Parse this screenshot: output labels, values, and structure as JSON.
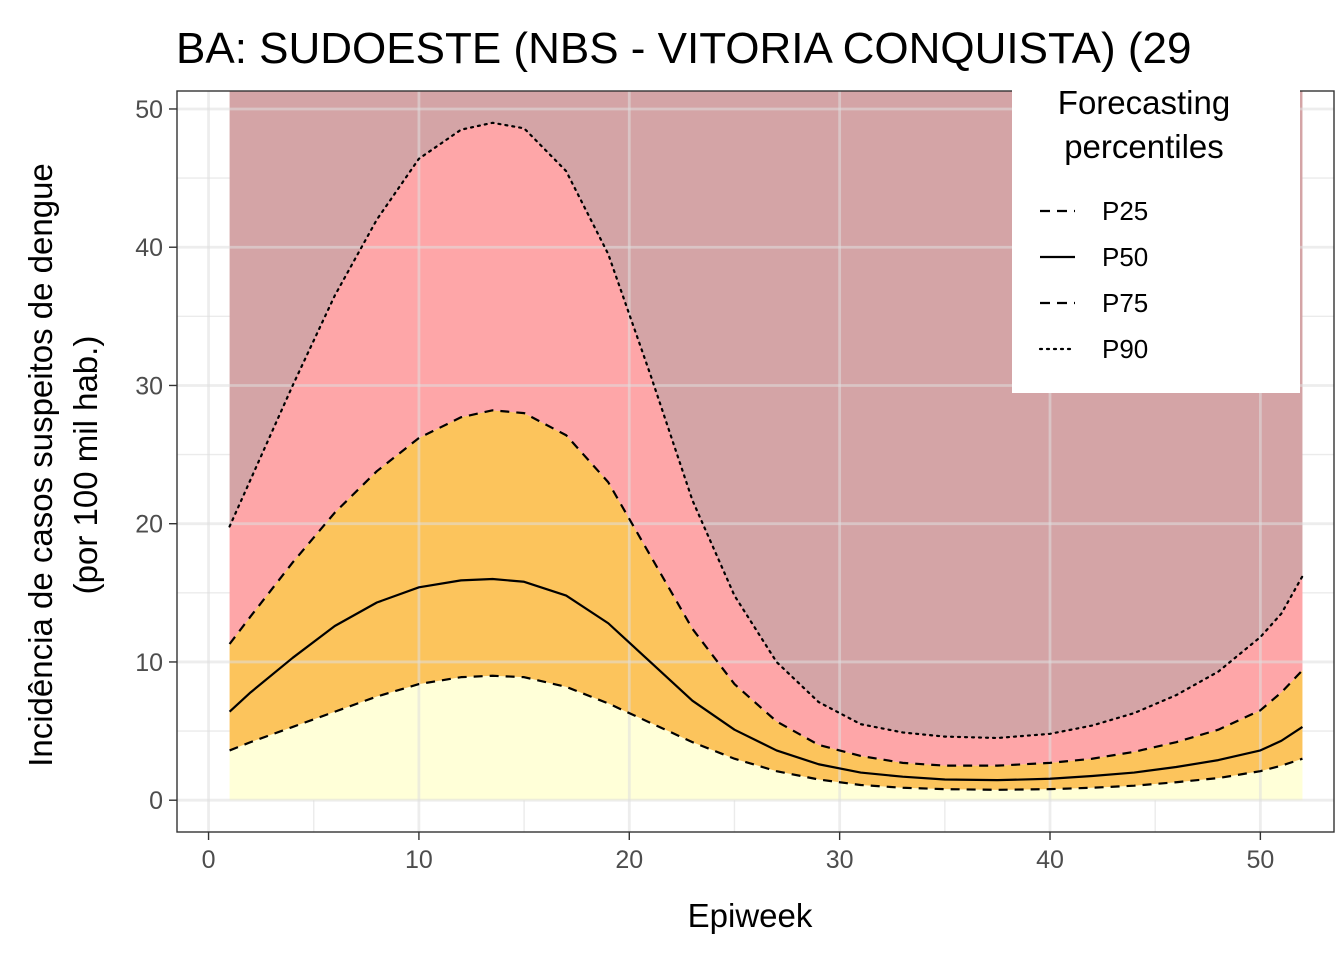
{
  "chart_data": {
    "type": "area",
    "title": "BA: SUDOESTE (NBS - VITORIA CONQUISTA) (29",
    "xlabel": "Epiweek",
    "ylabel_lines": [
      "Incidência de casos suspeitos de dengue",
      "(por 100 mil hab.)"
    ],
    "xlim": [
      -1.5,
      53.5
    ],
    "ylim": [
      -2.3,
      51.3
    ],
    "x_ticks": [
      0,
      10,
      20,
      30,
      40,
      50
    ],
    "y_ticks": [
      0,
      10,
      20,
      30,
      40,
      50
    ],
    "grid": true,
    "x": [
      1,
      2,
      4,
      6,
      8,
      10,
      12,
      13.5,
      15,
      17,
      19,
      21,
      23,
      25,
      27,
      29,
      31,
      33,
      35,
      37.5,
      40,
      42,
      44,
      46,
      48,
      50,
      51,
      52
    ],
    "series": [
      {
        "name": "P25",
        "linestyle": "dashed",
        "values": [
          3.6,
          4.2,
          5.3,
          6.4,
          7.5,
          8.4,
          8.9,
          9.0,
          8.9,
          8.2,
          7.0,
          5.6,
          4.2,
          3.0,
          2.1,
          1.5,
          1.1,
          0.9,
          0.8,
          0.75,
          0.8,
          0.9,
          1.05,
          1.3,
          1.6,
          2.1,
          2.5,
          3.0
        ]
      },
      {
        "name": "P50",
        "linestyle": "solid",
        "values": [
          6.4,
          7.8,
          10.3,
          12.6,
          14.3,
          15.4,
          15.9,
          16.0,
          15.8,
          14.8,
          12.8,
          10.0,
          7.2,
          5.1,
          3.6,
          2.6,
          2.0,
          1.7,
          1.5,
          1.45,
          1.55,
          1.75,
          2.0,
          2.4,
          2.9,
          3.6,
          4.3,
          5.3
        ]
      },
      {
        "name": "P75",
        "linestyle": "dashed",
        "values": [
          11.3,
          13.3,
          17.2,
          20.8,
          23.8,
          26.2,
          27.7,
          28.2,
          28.0,
          26.4,
          23.0,
          17.7,
          12.4,
          8.4,
          5.7,
          4.0,
          3.2,
          2.7,
          2.5,
          2.5,
          2.7,
          3.0,
          3.5,
          4.2,
          5.1,
          6.5,
          7.8,
          9.4
        ]
      },
      {
        "name": "P90",
        "linestyle": "dotted",
        "values": [
          19.8,
          23.2,
          30.0,
          36.5,
          42.0,
          46.4,
          48.5,
          49.0,
          48.6,
          45.5,
          39.5,
          30.8,
          21.7,
          14.8,
          10.0,
          7.1,
          5.5,
          4.9,
          4.6,
          4.5,
          4.8,
          5.4,
          6.3,
          7.6,
          9.3,
          11.8,
          13.5,
          16.2
        ]
      }
    ],
    "band_top": 51.3,
    "band_colors": [
      "#ffffd8",
      "#fcc45c",
      "#fea6a8",
      "#d4a4a6"
    ],
    "legend": {
      "title_lines": [
        "Forecasting",
        "percentiles"
      ],
      "position": "top-right",
      "entries": [
        {
          "label": "P25",
          "linestyle": "dashed"
        },
        {
          "label": "P50",
          "linestyle": "solid"
        },
        {
          "label": "P75",
          "linestyle": "dashed"
        },
        {
          "label": "P90",
          "linestyle": "dotted"
        }
      ]
    }
  }
}
